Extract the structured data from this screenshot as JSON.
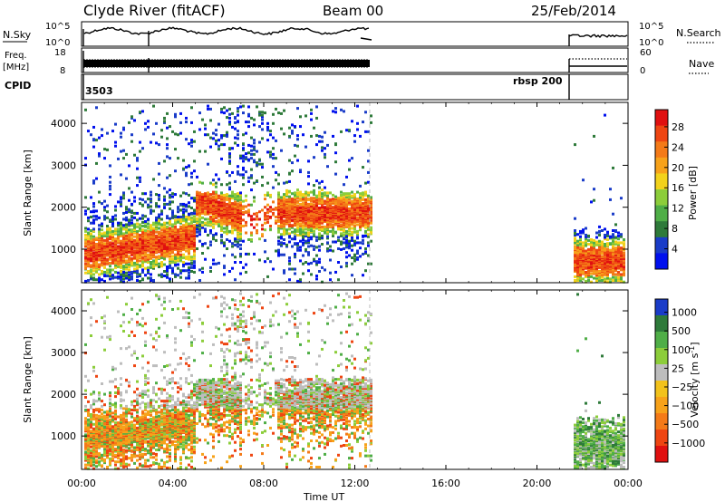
{
  "header": {
    "station": "Clyde River (fitACF)",
    "beam": "Beam 00",
    "date": "25/Feb/2014"
  },
  "panels": {
    "nsky": {
      "label": "N.Sky",
      "ticks": [
        "10^5",
        "10^0"
      ],
      "right_ticks": [
        "10^5",
        "10^0"
      ],
      "right_label": "N.Search"
    },
    "freq": {
      "label_line1": "Freq.",
      "label_line2": "[MHz]",
      "ticks": [
        "18",
        "8"
      ],
      "right_ticks": [
        "60",
        "0"
      ],
      "right_label": "Nave"
    },
    "cpid": {
      "label": "CPID",
      "value_left": "3503",
      "value_right": "rbsp 200"
    }
  },
  "chart_data": [
    {
      "type": "heatmap",
      "name": "Power",
      "ylabel": "Slant Range [km]",
      "xlabel": "Time UT",
      "xlim": [
        0,
        24
      ],
      "ylim": [
        200,
        4500
      ],
      "yticks": [
        1000,
        2000,
        3000,
        4000
      ],
      "colorbar": {
        "label": "Power [dB]",
        "ticks": [
          "4",
          "8",
          "12",
          "16",
          "20",
          "24",
          "28"
        ],
        "colors": [
          "#0010ee",
          "#1a3cc8",
          "#2e7a3a",
          "#4fae47",
          "#8ccd3a",
          "#f2d21b",
          "#f7a21a",
          "#f47a18",
          "#ee4512",
          "#e01010"
        ]
      }
    },
    {
      "type": "heatmap",
      "name": "Velocity",
      "ylabel": "Slant Range [km]",
      "xlabel": "Time UT",
      "xlim": [
        0,
        24
      ],
      "ylim": [
        200,
        4500
      ],
      "yticks": [
        1000,
        2000,
        3000,
        4000
      ],
      "colorbar": {
        "label": "Velocity [m s^-1]",
        "ticks": [
          "1000",
          "500",
          "100",
          "25",
          "-25",
          "-100",
          "-500",
          "-1000"
        ],
        "colors": [
          "#1a3cc8",
          "#2e7a3a",
          "#4fae47",
          "#8ccd3a",
          "#bdbdbd",
          "#f2c21b",
          "#f7a21a",
          "#f47a18",
          "#ee4512",
          "#e01010"
        ]
      }
    }
  ],
  "time_axis": {
    "label": "Time UT",
    "ticks": [
      "00:00",
      "04:00",
      "08:00",
      "12:00",
      "16:00",
      "20:00",
      "00:00"
    ]
  }
}
